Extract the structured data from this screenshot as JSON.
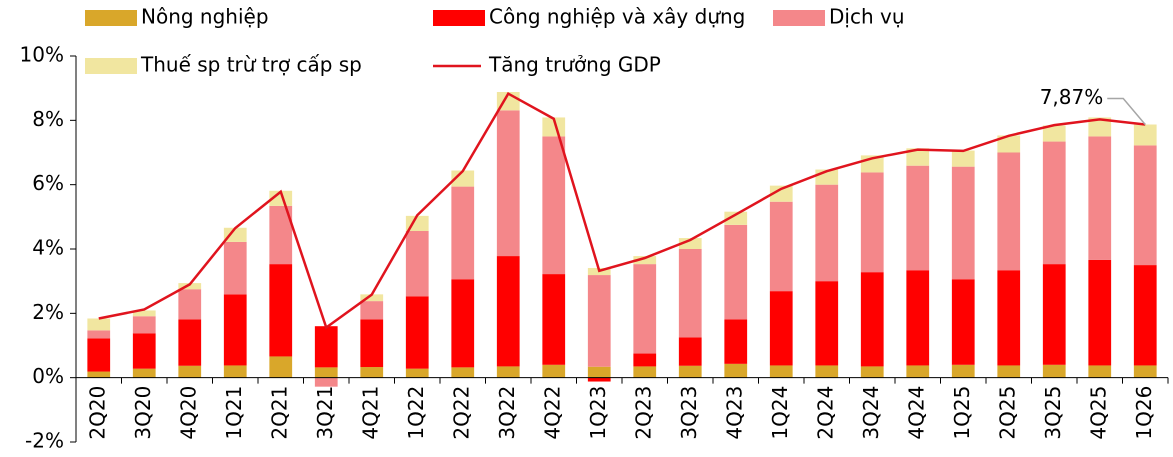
{
  "chart_data": {
    "type": "bar",
    "categories": [
      "2Q20",
      "3Q20",
      "4Q20",
      "1Q21",
      "2Q21",
      "3Q21",
      "4Q21",
      "1Q22",
      "2Q22",
      "3Q22",
      "4Q22",
      "1Q23",
      "2Q23",
      "3Q23",
      "4Q23",
      "1Q24",
      "2Q24",
      "3Q24",
      "4Q24",
      "1Q25",
      "2Q25",
      "3Q25",
      "4Q25",
      "1Q26"
    ],
    "series": [
      {
        "name": "Nông nghiệp",
        "color": "#d9a72a",
        "values": [
          0.19,
          0.28,
          0.37,
          0.38,
          0.66,
          0.32,
          0.33,
          0.28,
          0.32,
          0.35,
          0.4,
          0.34,
          0.35,
          0.37,
          0.43,
          0.38,
          0.38,
          0.35,
          0.38,
          0.4,
          0.38,
          0.4,
          0.38,
          0.38
        ]
      },
      {
        "name": "Công nghiệp và xây dựng",
        "color": "#ff0000",
        "values": [
          1.03,
          1.1,
          1.44,
          2.21,
          2.87,
          1.28,
          1.48,
          2.25,
          2.74,
          3.43,
          2.82,
          -0.12,
          0.4,
          0.88,
          1.38,
          2.31,
          2.62,
          2.93,
          2.96,
          2.66,
          2.96,
          3.13,
          3.28,
          3.12
        ]
      },
      {
        "name": "Dịch vụ",
        "color": "#f4878a",
        "values": [
          0.25,
          0.53,
          0.94,
          1.63,
          1.81,
          -0.28,
          0.57,
          2.03,
          2.88,
          4.53,
          4.28,
          2.85,
          2.78,
          2.75,
          2.94,
          2.78,
          3.0,
          3.1,
          3.25,
          3.5,
          3.66,
          3.81,
          3.84,
          3.72
        ]
      },
      {
        "name": "Thuế sp trừ trợ cấp sp",
        "color": "#f1e6a0",
        "values": [
          0.37,
          0.18,
          0.19,
          0.44,
          0.47,
          0.0,
          0.21,
          0.47,
          0.5,
          0.57,
          0.59,
          0.22,
          0.25,
          0.34,
          0.41,
          0.5,
          0.47,
          0.53,
          0.54,
          0.5,
          0.53,
          0.5,
          0.59,
          0.65
        ]
      },
      {
        "name": "Tăng trưởng GDP",
        "type": "line",
        "color": "#e0141e",
        "values": [
          1.84,
          2.12,
          2.9,
          4.65,
          5.78,
          1.56,
          2.58,
          5.05,
          6.42,
          8.83,
          8.05,
          3.32,
          3.72,
          4.28,
          5.07,
          5.87,
          6.42,
          6.82,
          7.09,
          7.05,
          7.52,
          7.85,
          8.03,
          7.87
        ],
        "value_labels": [
          null,
          null,
          null,
          null,
          null,
          null,
          null,
          null,
          null,
          null,
          null,
          null,
          null,
          null,
          null,
          null,
          null,
          null,
          null,
          null,
          null,
          null,
          null,
          "7,87%"
        ]
      }
    ],
    "ylim": [
      -2,
      10
    ],
    "yticks": [
      {
        "value": -2,
        "label": "-2%"
      },
      {
        "value": 0,
        "label": "0%"
      },
      {
        "value": 2,
        "label": "2%"
      },
      {
        "value": 4,
        "label": "4%"
      },
      {
        "value": 6,
        "label": "6%"
      },
      {
        "value": 8,
        "label": "8%"
      },
      {
        "value": 10,
        "label": "10%"
      }
    ]
  }
}
